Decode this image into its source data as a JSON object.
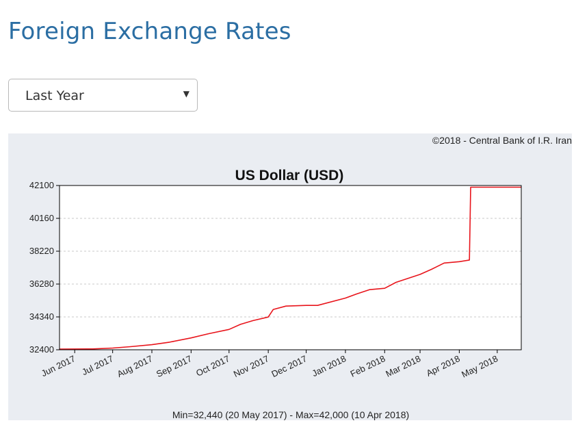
{
  "page": {
    "title": "Foreign Exchange Rates"
  },
  "period_select": {
    "selected": "Last Year",
    "arrow": "▼"
  },
  "chart_data": {
    "type": "line",
    "title": "US Dollar (USD)",
    "copyright": "©2018 - Central Bank of I.R. Iran",
    "footer": "Min=32,440 (20 May 2017) - Max=42,000 (10 Apr 2018)",
    "xlabel": "",
    "ylabel": "",
    "ylim": [
      32400,
      42100
    ],
    "y_ticks": [
      32400,
      34340,
      36280,
      38220,
      40160,
      42100
    ],
    "xlim": [
      "2017-05-20",
      "2018-05-20"
    ],
    "x_tick_labels": [
      "Jun 2017",
      "Jul 2017",
      "Aug 2017",
      "Sep 2017",
      "Oct 2017",
      "Nov 2017",
      "Dec 2017",
      "Jan 2018",
      "Feb 2018",
      "Mar 2018",
      "Apr 2018",
      "May 2018"
    ],
    "x_tick_dates": [
      "2017-06-01",
      "2017-07-01",
      "2017-08-01",
      "2017-09-01",
      "2017-10-01",
      "2017-11-01",
      "2017-12-01",
      "2018-01-01",
      "2018-02-01",
      "2018-03-01",
      "2018-04-01",
      "2018-05-01"
    ],
    "grid": "horizontal dashed",
    "line_color": "#e8141b",
    "series": [
      {
        "x": [
          "2017-05-20",
          "2017-06-15",
          "2017-07-01",
          "2017-07-15",
          "2017-08-01",
          "2017-08-15",
          "2017-09-01",
          "2017-09-15",
          "2017-10-01",
          "2017-10-10",
          "2017-10-20",
          "2017-11-01",
          "2017-11-05",
          "2017-11-15",
          "2017-12-01",
          "2017-12-10",
          "2018-01-01",
          "2018-01-10",
          "2018-01-20",
          "2018-02-01",
          "2018-02-10",
          "2018-03-01",
          "2018-03-10",
          "2018-03-20",
          "2018-04-01",
          "2018-04-09",
          "2018-04-10",
          "2018-05-20"
        ],
        "y": [
          32440,
          32450,
          32500,
          32580,
          32700,
          32850,
          33100,
          33350,
          33600,
          33900,
          34120,
          34330,
          34780,
          34980,
          35020,
          35020,
          35450,
          35700,
          35950,
          36030,
          36380,
          36850,
          37150,
          37520,
          37600,
          37700,
          42000,
          42000
        ]
      }
    ]
  }
}
